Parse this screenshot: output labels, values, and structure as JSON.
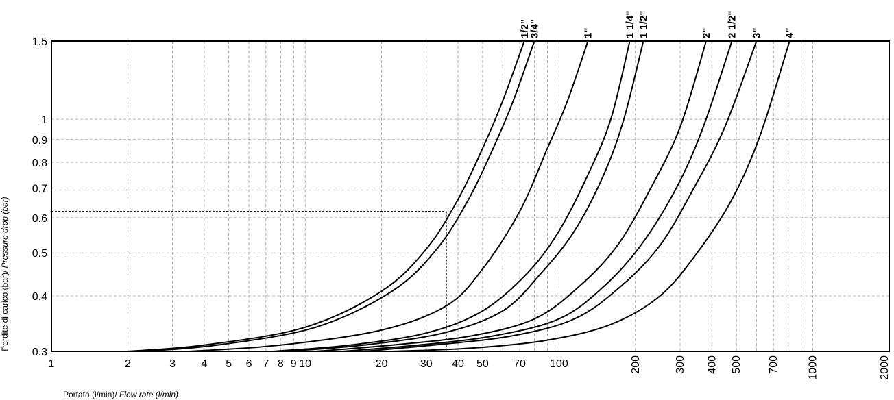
{
  "chart_data": {
    "type": "line",
    "title": "",
    "xlabel": {
      "it": "Portata (l/min)/ ",
      "en": "Flow rate (l/min)"
    },
    "ylabel": {
      "it": "Perdite di carico (bar)/ ",
      "en": "Pressure drop (bar)"
    },
    "x_scale": "log",
    "y_scale": "log",
    "xlim": [
      1,
      2000
    ],
    "ylim": [
      0.3,
      1.5
    ],
    "x_ticks": [
      {
        "v": 1,
        "label": "1",
        "vertical": false
      },
      {
        "v": 2,
        "label": "2",
        "vertical": false
      },
      {
        "v": 3,
        "label": "3",
        "vertical": false
      },
      {
        "v": 4,
        "label": "4",
        "vertical": false
      },
      {
        "v": 5,
        "label": "5",
        "vertical": false
      },
      {
        "v": 6,
        "label": "6",
        "vertical": false
      },
      {
        "v": 7,
        "label": "7",
        "vertical": false
      },
      {
        "v": 8,
        "label": "8",
        "vertical": false
      },
      {
        "v": 9,
        "label": "9",
        "vertical": false
      },
      {
        "v": 10,
        "label": "10",
        "vertical": false
      },
      {
        "v": 20,
        "label": "20",
        "vertical": false
      },
      {
        "v": 30,
        "label": "30",
        "vertical": false
      },
      {
        "v": 40,
        "label": "40",
        "vertical": false
      },
      {
        "v": 50,
        "label": "50",
        "vertical": false
      },
      {
        "v": 70,
        "label": "70",
        "vertical": false
      },
      {
        "v": 100,
        "label": "100",
        "vertical": false
      },
      {
        "v": 200,
        "label": "200",
        "vertical": true
      },
      {
        "v": 300,
        "label": "300",
        "vertical": true
      },
      {
        "v": 400,
        "label": "400",
        "vertical": true
      },
      {
        "v": 500,
        "label": "500",
        "vertical": true
      },
      {
        "v": 700,
        "label": "700",
        "vertical": true
      },
      {
        "v": 1000,
        "label": "1000",
        "vertical": true
      },
      {
        "v": 2000,
        "label": "2000",
        "vertical": true
      }
    ],
    "x_grid": [
      2,
      3,
      4,
      5,
      6,
      7,
      8,
      9,
      10,
      20,
      30,
      40,
      50,
      60,
      70,
      80,
      90,
      100,
      200,
      300,
      400,
      500,
      600,
      700,
      800,
      900,
      1000
    ],
    "y_ticks": [
      {
        "v": 0.3,
        "label": "0.3"
      },
      {
        "v": 0.4,
        "label": "0.4"
      },
      {
        "v": 0.5,
        "label": "0.5"
      },
      {
        "v": 0.6,
        "label": "0.6"
      },
      {
        "v": 0.7,
        "label": "0.7"
      },
      {
        "v": 0.8,
        "label": "0.8"
      },
      {
        "v": 0.9,
        "label": "0.9"
      },
      {
        "v": 1,
        "label": "1"
      },
      {
        "v": 1.5,
        "label": "1.5"
      }
    ],
    "grid": true,
    "series": [
      {
        "name": "1/2\"",
        "x": [
          2,
          4,
          10,
          20,
          30,
          40,
          50,
          60,
          73
        ],
        "y": [
          0.3,
          0.31,
          0.34,
          0.41,
          0.51,
          0.66,
          0.86,
          1.1,
          1.5
        ]
      },
      {
        "name": "3/4\"",
        "x": [
          2.3,
          4.5,
          11,
          22,
          33,
          44,
          55,
          66,
          80
        ],
        "y": [
          0.3,
          0.31,
          0.34,
          0.41,
          0.51,
          0.66,
          0.86,
          1.1,
          1.5
        ]
      },
      {
        "name": "1\"",
        "x": [
          3.5,
          8,
          20,
          36,
          50,
          70,
          90,
          108,
          130
        ],
        "y": [
          0.3,
          0.31,
          0.335,
          0.38,
          0.46,
          0.62,
          0.86,
          1.1,
          1.5
        ]
      },
      {
        "name": "1 1/4\"",
        "x": [
          7.5,
          15,
          30,
          50,
          75,
          100,
          130,
          160,
          190
        ],
        "y": [
          0.3,
          0.31,
          0.33,
          0.37,
          0.45,
          0.56,
          0.75,
          1.0,
          1.5
        ]
      },
      {
        "name": "1 1/2\"",
        "x": [
          8.5,
          17,
          35,
          60,
          85,
          115,
          150,
          180,
          215
        ],
        "y": [
          0.3,
          0.31,
          0.33,
          0.37,
          0.45,
          0.56,
          0.75,
          1.0,
          1.5
        ]
      },
      {
        "name": "2\"",
        "x": [
          11,
          22,
          45,
          80,
          120,
          170,
          230,
          300,
          380
        ],
        "y": [
          0.3,
          0.31,
          0.325,
          0.355,
          0.42,
          0.52,
          0.7,
          0.96,
          1.5
        ]
      },
      {
        "name": "2 1/2\"",
        "x": [
          14,
          28,
          55,
          100,
          150,
          210,
          290,
          370,
          480
        ],
        "y": [
          0.3,
          0.31,
          0.325,
          0.355,
          0.42,
          0.52,
          0.7,
          0.96,
          1.5
        ]
      },
      {
        "name": "3\"",
        "x": [
          17,
          32,
          65,
          115,
          175,
          250,
          340,
          450,
          600
        ],
        "y": [
          0.3,
          0.31,
          0.325,
          0.355,
          0.42,
          0.52,
          0.7,
          0.96,
          1.5
        ]
      },
      {
        "name": "4\"",
        "x": [
          22,
          45,
          90,
          160,
          250,
          350,
          480,
          620,
          810
        ],
        "y": [
          0.3,
          0.305,
          0.318,
          0.345,
          0.4,
          0.5,
          0.66,
          0.92,
          1.5
        ]
      }
    ],
    "reference_point": {
      "x": 36,
      "y": 0.62
    }
  }
}
